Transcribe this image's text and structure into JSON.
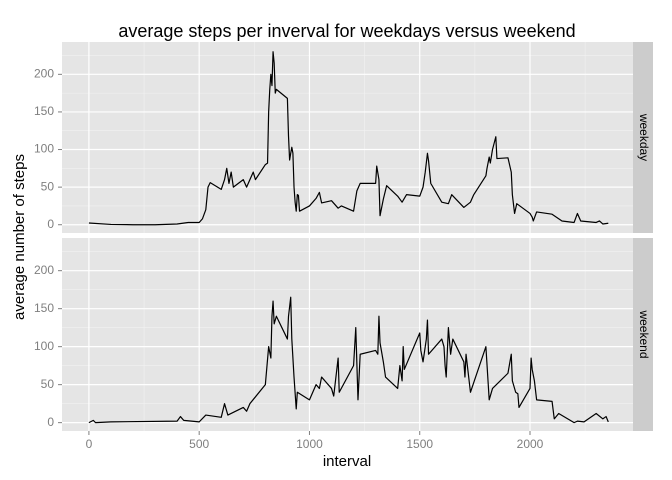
{
  "chart_data": {
    "type": "line",
    "title": "average steps per inverval for weekdays versus weekend",
    "xlabel": "interval",
    "ylabel": "average number of steps",
    "xlim": [
      -122,
      2467
    ],
    "ylim": [
      -11,
      243
    ],
    "xticks": [
      0,
      500,
      1000,
      1500,
      2000
    ],
    "yticks": [
      0,
      50,
      100,
      150,
      200
    ],
    "xminor": [
      250,
      750,
      1250,
      1750,
      2250
    ],
    "yminor": [
      25,
      75,
      125,
      175,
      225
    ],
    "grid": true,
    "series": [
      {
        "name": "weekday",
        "color": "#000000",
        "x": [
          0,
          100,
          200,
          300,
          400,
          450,
          500,
          515,
          530,
          540,
          550,
          600,
          615,
          625,
          635,
          645,
          655,
          700,
          715,
          730,
          745,
          755,
          800,
          810,
          815,
          820,
          825,
          830,
          835,
          840,
          845,
          850,
          900,
          905,
          910,
          915,
          920,
          925,
          930,
          935,
          940,
          945,
          950,
          955,
          1000,
          1030,
          1045,
          1055,
          1100,
          1130,
          1145,
          1200,
          1215,
          1230,
          1300,
          1305,
          1315,
          1320,
          1335,
          1350,
          1400,
          1420,
          1440,
          1500,
          1515,
          1525,
          1535,
          1540,
          1550,
          1600,
          1630,
          1645,
          1700,
          1730,
          1745,
          1800,
          1805,
          1815,
          1820,
          1830,
          1845,
          1850,
          1900,
          1915,
          1920,
          1930,
          1940,
          2000,
          2010,
          2015,
          2030,
          2100,
          2120,
          2145,
          2200,
          2215,
          2230,
          2300,
          2315,
          2330,
          2355
        ],
        "values": [
          2.3,
          0.4,
          0,
          0,
          1,
          3,
          3,
          8,
          20,
          50,
          56,
          47,
          60,
          75,
          55,
          70,
          50,
          60,
          50,
          60,
          70,
          60,
          80,
          82,
          150,
          180,
          200,
          185,
          230,
          215,
          175,
          180,
          168,
          118,
          86,
          95,
          103,
          95,
          50,
          30,
          18,
          40,
          39,
          18,
          25,
          35,
          43,
          29,
          32,
          22,
          25,
          18,
          45,
          55,
          55,
          78,
          60,
          12,
          34,
          52,
          38,
          30,
          40,
          38,
          50,
          70,
          95,
          85,
          55,
          30,
          28,
          40,
          23,
          30,
          40,
          65,
          75,
          90,
          82,
          100,
          117,
          88,
          89,
          70,
          40,
          15,
          28,
          15,
          10,
          5,
          17,
          14,
          10,
          5,
          3,
          15,
          5,
          3,
          5,
          1,
          2
        ]
      },
      {
        "name": "weekend",
        "color": "#000000",
        "x": [
          0,
          20,
          30,
          100,
          400,
          415,
          430,
          500,
          530,
          600,
          615,
          630,
          700,
          715,
          730,
          800,
          815,
          825,
          830,
          835,
          840,
          850,
          900,
          905,
          915,
          920,
          930,
          940,
          945,
          1000,
          1030,
          1045,
          1055,
          1100,
          1110,
          1130,
          1135,
          1200,
          1210,
          1220,
          1230,
          1300,
          1310,
          1315,
          1320,
          1335,
          1345,
          1400,
          1410,
          1420,
          1425,
          1430,
          1500,
          1505,
          1515,
          1525,
          1530,
          1535,
          1540,
          1600,
          1610,
          1615,
          1620,
          1630,
          1640,
          1650,
          1700,
          1705,
          1710,
          1730,
          1800,
          1815,
          1830,
          1900,
          1915,
          1920,
          1935,
          1945,
          1950,
          2000,
          2005,
          2010,
          2020,
          2030,
          2100,
          2110,
          2130,
          2200,
          2215,
          2245,
          2300,
          2330,
          2345,
          2355
        ],
        "values": [
          0,
          3,
          0,
          1,
          2,
          8,
          3,
          1,
          10,
          7,
          25,
          10,
          20,
          15,
          25,
          50,
          100,
          85,
          140,
          160,
          130,
          140,
          110,
          140,
          165,
          110,
          60,
          18,
          40,
          30,
          50,
          45,
          60,
          45,
          35,
          85,
          40,
          75,
          125,
          30,
          90,
          95,
          90,
          140,
          105,
          80,
          60,
          45,
          75,
          55,
          100,
          70,
          118,
          95,
          80,
          100,
          110,
          135,
          90,
          110,
          100,
          75,
          60,
          125,
          90,
          110,
          80,
          60,
          90,
          40,
          100,
          30,
          45,
          65,
          90,
          55,
          40,
          38,
          20,
          45,
          85,
          70,
          55,
          30,
          28,
          5,
          12,
          0,
          2,
          1,
          12,
          5,
          8,
          1
        ]
      }
    ]
  }
}
